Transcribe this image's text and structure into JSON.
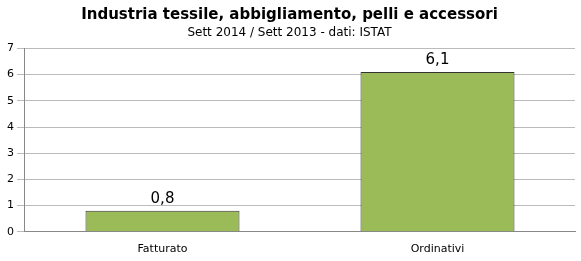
{
  "chart_data": {
    "type": "bar",
    "title": "Industria tessile, abbigliamento, pelli e accessori",
    "subtitle": "Sett 2014 / Sett 2013 - dati: ISTAT",
    "categories": [
      "Fatturato",
      "Ordinativi"
    ],
    "values": [
      0.8,
      6.1
    ],
    "value_labels": [
      "0,8",
      "6,1"
    ],
    "data_labels": true,
    "color": "#9bbb59",
    "ylim": [
      0,
      7
    ],
    "yticks": [
      0,
      1,
      2,
      3,
      4,
      5,
      6,
      7
    ],
    "grid": true
  }
}
